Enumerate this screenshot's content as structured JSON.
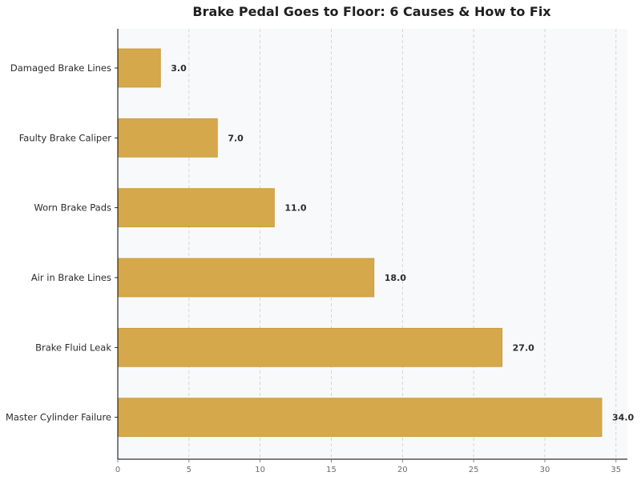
{
  "chart_data": {
    "type": "bar",
    "orientation": "horizontal",
    "title": "Brake Pedal Goes to Floor: 6 Causes & How to Fix",
    "xlabel": "",
    "ylabel": "",
    "categories": [
      "Damaged Brake Lines",
      "Faulty Brake Caliper",
      "Worn Brake Pads",
      "Air in Brake Lines",
      "Brake Fluid Leak",
      "Master Cylinder Failure"
    ],
    "values": [
      3.0,
      7.0,
      11.0,
      18.0,
      27.0,
      34.0
    ],
    "value_labels": [
      "3.0",
      "7.0",
      "11.0",
      "18.0",
      "27.0",
      "34.0"
    ],
    "xlim": [
      0,
      35.8
    ],
    "xticks": [
      0,
      5,
      10,
      15,
      20,
      25,
      30,
      35
    ],
    "xtick_labels": [
      "0",
      "5",
      "10",
      "15",
      "20",
      "25",
      "30",
      "35"
    ],
    "grid": "vertical dashed",
    "legend": "none",
    "colors": {
      "bar": "#d4a84b",
      "bar_edge": "#c89a38",
      "plot_bg": "#f8f9fa",
      "grid": "#cccccc",
      "axis": "#000000"
    }
  }
}
